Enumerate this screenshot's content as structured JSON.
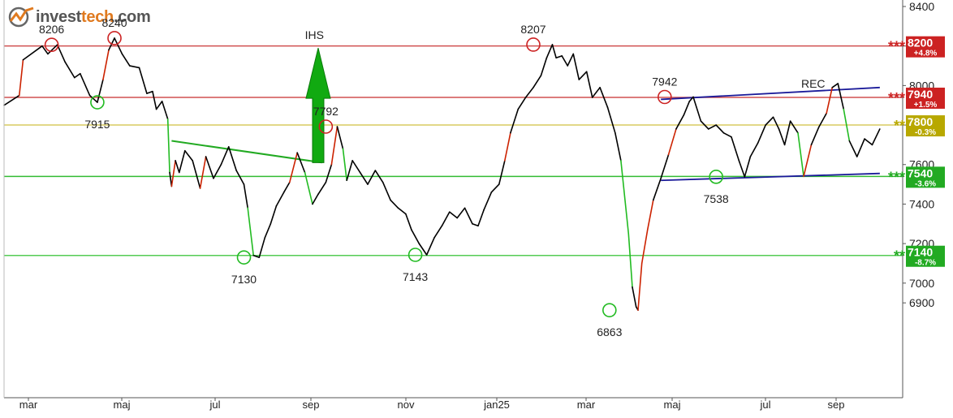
{
  "brand": {
    "prefix": "invest",
    "accent": "tech",
    "suffix": ".com",
    "accent_color": "#e07a1f"
  },
  "chart_data": {
    "type": "line",
    "title": "",
    "xlabel": "",
    "ylabel": "",
    "x_ticks": [
      "mar",
      "maj",
      "jul",
      "sep",
      "nov",
      "jan25",
      "mar",
      "maj",
      "jul",
      "sep"
    ],
    "y_ticks": [
      6900,
      7000,
      7200,
      7400,
      7600,
      7800,
      8000,
      8200,
      8400
    ],
    "ylim": [
      6420,
      8400
    ],
    "colors": {
      "up": "#cc2200",
      "down": "#22bb22",
      "neutral": "#000000",
      "trend": "#22aa22",
      "channel": "#1a1a99"
    },
    "levels": [
      {
        "value": 8200,
        "stars": "***",
        "label": "8200",
        "pct": "+4.8%",
        "color": "#cc2222",
        "line_color": "#d05050"
      },
      {
        "value": 7940,
        "stars": "***",
        "label": "7940",
        "pct": "+1.5%",
        "color": "#cc2222",
        "line_color": "#d05050"
      },
      {
        "value": 7800,
        "stars": "**",
        "label": "7800",
        "pct": "-0.3%",
        "color": "#b8a800",
        "line_color": "#d9cc60"
      },
      {
        "value": 7540,
        "stars": "***",
        "label": "7540",
        "pct": "-3.6%",
        "color": "#22aa22",
        "line_color": "#33bb33"
      },
      {
        "value": 7140,
        "stars": "**",
        "label": "7140",
        "pct": "-8.7%",
        "color": "#22aa22",
        "line_color": "#55cc55"
      }
    ],
    "annotations": [
      {
        "text": "8206",
        "value": 8206,
        "kind": "high"
      },
      {
        "text": "8240",
        "value": 8240,
        "kind": "high"
      },
      {
        "text": "7915",
        "value": 7915,
        "kind": "low"
      },
      {
        "text": "7130",
        "value": 7130,
        "kind": "low"
      },
      {
        "text": "IHS",
        "value": null,
        "kind": "pattern"
      },
      {
        "text": "7792",
        "value": 7792,
        "kind": "high"
      },
      {
        "text": "7143",
        "value": 7143,
        "kind": "low"
      },
      {
        "text": "8207",
        "value": 8207,
        "kind": "high"
      },
      {
        "text": "6863",
        "value": 6863,
        "kind": "low"
      },
      {
        "text": "7942",
        "value": 7942,
        "kind": "high"
      },
      {
        "text": "7538",
        "value": 7538,
        "kind": "low"
      },
      {
        "text": "REC",
        "value": null,
        "kind": "pattern"
      }
    ],
    "series": [
      {
        "points": [
          [
            0,
            7900
          ],
          [
            8,
            7950
          ],
          [
            10,
            8130
          ],
          [
            20,
            8200
          ],
          [
            23,
            8160
          ],
          [
            28,
            8206
          ],
          [
            32,
            8120
          ],
          [
            37,
            8040
          ],
          [
            40,
            8060
          ],
          [
            45,
            7950
          ],
          [
            49,
            7915
          ],
          [
            52,
            8030
          ],
          [
            55,
            8180
          ],
          [
            58,
            8240
          ],
          [
            62,
            8160
          ],
          [
            66,
            8100
          ],
          [
            71,
            8090
          ],
          [
            75,
            7960
          ],
          [
            78,
            7970
          ],
          [
            80,
            7880
          ],
          [
            83,
            7920
          ],
          [
            86,
            7830
          ],
          [
            87,
            7560
          ],
          [
            88,
            7490
          ],
          [
            90,
            7620
          ],
          [
            92,
            7560
          ],
          [
            95,
            7670
          ],
          [
            99,
            7620
          ],
          [
            103,
            7480
          ],
          [
            106,
            7640
          ],
          [
            110,
            7530
          ],
          [
            114,
            7600
          ],
          [
            118,
            7690
          ],
          [
            122,
            7570
          ],
          [
            126,
            7500
          ],
          [
            128,
            7380
          ],
          [
            131,
            7140
          ],
          [
            134,
            7130
          ],
          [
            137,
            7230
          ],
          [
            140,
            7300
          ],
          [
            143,
            7390
          ],
          [
            147,
            7460
          ],
          [
            150,
            7510
          ],
          [
            154,
            7660
          ],
          [
            158,
            7560
          ],
          [
            162,
            7400
          ],
          [
            165,
            7450
          ],
          [
            169,
            7510
          ],
          [
            172,
            7600
          ],
          [
            175,
            7792
          ],
          [
            178,
            7680
          ],
          [
            180,
            7520
          ],
          [
            183,
            7620
          ],
          [
            187,
            7560
          ],
          [
            191,
            7500
          ],
          [
            195,
            7570
          ],
          [
            199,
            7510
          ],
          [
            203,
            7420
          ],
          [
            207,
            7380
          ],
          [
            211,
            7350
          ],
          [
            214,
            7270
          ],
          [
            218,
            7200
          ],
          [
            222,
            7143
          ],
          [
            226,
            7230
          ],
          [
            230,
            7290
          ],
          [
            234,
            7360
          ],
          [
            238,
            7330
          ],
          [
            242,
            7380
          ],
          [
            246,
            7300
          ],
          [
            249,
            7290
          ],
          [
            252,
            7370
          ],
          [
            256,
            7460
          ],
          [
            260,
            7500
          ],
          [
            263,
            7620
          ],
          [
            266,
            7760
          ],
          [
            270,
            7880
          ],
          [
            274,
            7940
          ],
          [
            278,
            7990
          ],
          [
            282,
            8050
          ],
          [
            285,
            8140
          ],
          [
            288,
            8207
          ],
          [
            290,
            8140
          ],
          [
            293,
            8150
          ],
          [
            296,
            8100
          ],
          [
            299,
            8160
          ],
          [
            302,
            8030
          ],
          [
            306,
            8070
          ],
          [
            309,
            7940
          ],
          [
            313,
            7990
          ],
          [
            317,
            7890
          ],
          [
            321,
            7760
          ],
          [
            324,
            7620
          ],
          [
            328,
            7250
          ],
          [
            330,
            6980
          ],
          [
            332,
            6880
          ],
          [
            333,
            6863
          ],
          [
            335,
            7100
          ],
          [
            338,
            7270
          ],
          [
            341,
            7420
          ],
          [
            345,
            7530
          ],
          [
            349,
            7650
          ],
          [
            353,
            7780
          ],
          [
            357,
            7850
          ],
          [
            360,
            7920
          ],
          [
            362,
            7942
          ],
          [
            366,
            7820
          ],
          [
            370,
            7780
          ],
          [
            374,
            7800
          ],
          [
            378,
            7760
          ],
          [
            382,
            7740
          ],
          [
            386,
            7620
          ],
          [
            389,
            7538
          ],
          [
            392,
            7640
          ],
          [
            396,
            7710
          ],
          [
            400,
            7800
          ],
          [
            404,
            7840
          ],
          [
            407,
            7780
          ],
          [
            410,
            7700
          ],
          [
            413,
            7820
          ],
          [
            417,
            7760
          ],
          [
            420,
            7540
          ],
          [
            424,
            7700
          ],
          [
            428,
            7790
          ],
          [
            432,
            7860
          ],
          [
            435,
            7990
          ],
          [
            438,
            8010
          ],
          [
            441,
            7880
          ],
          [
            444,
            7720
          ],
          [
            448,
            7640
          ],
          [
            452,
            7730
          ],
          [
            456,
            7700
          ],
          [
            460,
            7780
          ]
        ]
      }
    ]
  },
  "pattern_lines": {
    "trend": [
      [
        88,
        7720
      ],
      [
        167,
        7610
      ]
    ],
    "channel_top": [
      [
        345,
        7930
      ],
      [
        460,
        7990
      ]
    ],
    "channel_bottom": [
      [
        345,
        7520
      ],
      [
        460,
        7555
      ]
    ]
  }
}
